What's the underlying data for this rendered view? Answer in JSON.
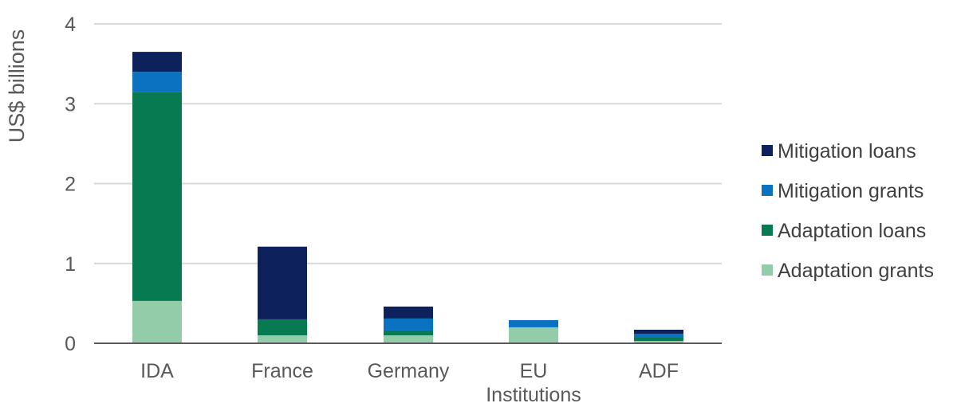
{
  "chart_data": {
    "type": "bar",
    "stacked": true,
    "categories": [
      "IDA",
      "France",
      "Germany",
      "EU\nInstitutions",
      "ADF"
    ],
    "series": [
      {
        "name": "Adaptation grants",
        "color": "#93cca9",
        "values": [
          0.53,
          0.1,
          0.1,
          0.2,
          0.03
        ]
      },
      {
        "name": "Adaptation loans",
        "color": "#077a52",
        "values": [
          2.62,
          0.2,
          0.06,
          0.0,
          0.04
        ]
      },
      {
        "name": "Mitigation grants",
        "color": "#0b72c1",
        "values": [
          0.25,
          0.0,
          0.15,
          0.09,
          0.05
        ]
      },
      {
        "name": "Mitigation loans",
        "color": "#0d225c",
        "values": [
          0.25,
          0.91,
          0.15,
          0.0,
          0.05
        ]
      }
    ],
    "legend_order": [
      "Mitigation loans",
      "Mitigation grants",
      "Adaptation loans",
      "Adaptation grants"
    ],
    "ylabel": "US$ billions",
    "xlabel": "",
    "ylim": [
      0,
      4
    ],
    "yticks": [
      0,
      1,
      2,
      3,
      4
    ],
    "grid": true,
    "legend_position": "right"
  }
}
